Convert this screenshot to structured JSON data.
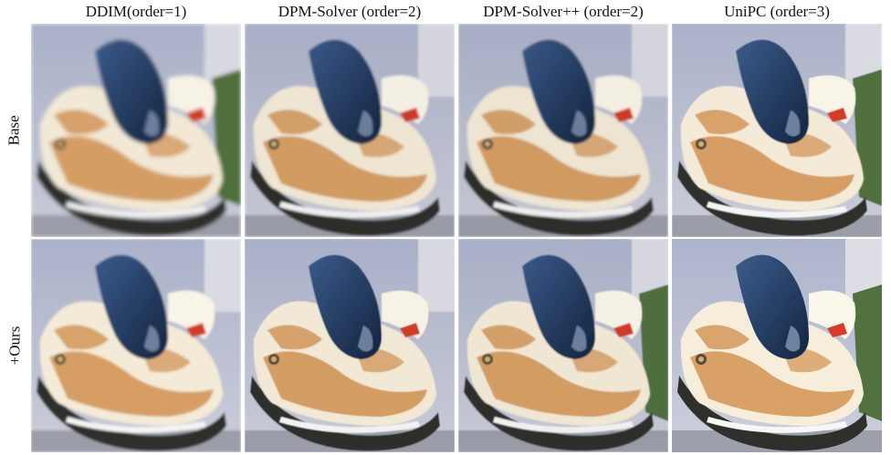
{
  "columns": [
    {
      "title": "DDIM(order=1)"
    },
    {
      "title": "DPM-Solver (order=2)"
    },
    {
      "title": "DPM-Solver++ (order=2)"
    },
    {
      "title": "UniPC (order=3)"
    }
  ],
  "rows": [
    {
      "label": "Base"
    },
    {
      "label": "+Ours"
    }
  ],
  "image_subject": "shoe",
  "colors": {
    "shoe_upper": "#f1e8d5",
    "shoe_tan": "#cf8f4f",
    "tongue_navy": "#263f66",
    "sole_dark": "#2f2f2c",
    "accent_red": "#d23a28",
    "background_wall": "#a9b0c8",
    "grass": "#4f6f3e"
  }
}
